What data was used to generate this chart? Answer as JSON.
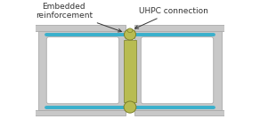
{
  "bg_color": "#ffffff",
  "beam_color": "#c8c8c8",
  "beam_outline": "#aaaaaa",
  "hole_color": "#ffffff",
  "uhpc_color": "#b8bc52",
  "uhpc_outline": "#7a7e2a",
  "rebar_color": "#3ab0cc",
  "ann_color": "#333333",
  "fig_width": 2.92,
  "fig_height": 1.52,
  "dpi": 100,
  "label_embedded": "Embedded\nreinforcement",
  "label_uhpc": "UHPC connection",
  "label_fontsize": 6.5,
  "xlim": [
    0,
    10
  ],
  "ylim": [
    0,
    7
  ]
}
